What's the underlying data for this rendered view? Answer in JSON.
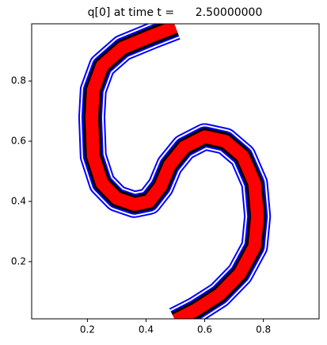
{
  "chart_data": {
    "type": "line",
    "title": "q[0] at time t =      2.50000000",
    "x": [
      0.5,
      0.42,
      0.32,
      0.25,
      0.22,
      0.215,
      0.22,
      0.25,
      0.3,
      0.36,
      0.41,
      0.45,
      0.48,
      0.53,
      0.6,
      0.67,
      0.73,
      0.77,
      0.78,
      0.77,
      0.72,
      0.65,
      0.57,
      0.5
    ],
    "values": [
      0.98,
      0.95,
      0.91,
      0.85,
      0.77,
      0.68,
      0.55,
      0.46,
      0.41,
      0.39,
      0.4,
      0.45,
      0.52,
      0.58,
      0.615,
      0.6,
      0.55,
      0.46,
      0.35,
      0.25,
      0.16,
      0.09,
      0.04,
      0.005
    ],
    "color": "#ff0000",
    "edge_color": "#000000",
    "outline_color": "#0000ff",
    "xlim": [
      0.01,
      0.99
    ],
    "ylim": [
      0.01,
      0.99
    ],
    "xticks": [
      0.2,
      0.4,
      0.6,
      0.8
    ],
    "yticks": [
      0.2,
      0.4,
      0.6,
      0.8
    ]
  }
}
